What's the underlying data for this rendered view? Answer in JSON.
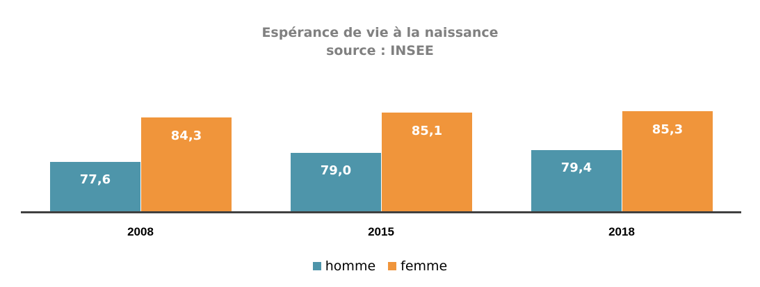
{
  "chart_data": {
    "type": "bar",
    "title": "Espérance de vie à la naissance",
    "subtitle": "source : INSEE",
    "categories": [
      "2008",
      "2015",
      "2018"
    ],
    "series": [
      {
        "name": "homme",
        "values": [
          77.6,
          79.0,
          79.4
        ],
        "labels": [
          "77,6",
          "79,0",
          "79,4"
        ],
        "color": "#4E95AA"
      },
      {
        "name": "femme",
        "values": [
          84.3,
          85.1,
          85.3
        ],
        "labels": [
          "84,3",
          "85,1",
          "85,3"
        ],
        "color": "#F0953B"
      }
    ],
    "xlabel": "",
    "ylabel": "",
    "grid": false,
    "legend_position": "bottom",
    "data_labels": true
  },
  "colors": {
    "axis": "#404040",
    "title": "#808080"
  }
}
